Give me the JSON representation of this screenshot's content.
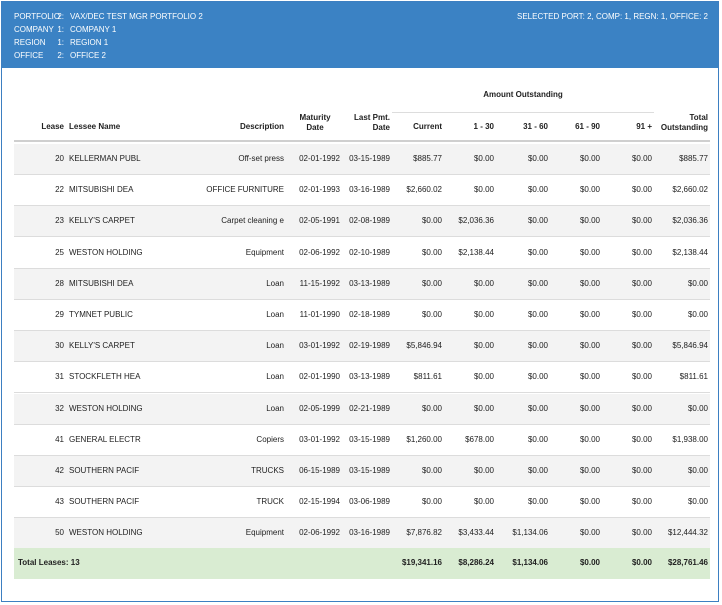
{
  "header": {
    "rows": [
      {
        "key": "PORTFOLIO",
        "num": "2:",
        "val": "VAX/DEC TEST MGR PORTFOLIO 2"
      },
      {
        "key": "COMPANY",
        "num": "1:",
        "val": "COMPANY 1"
      },
      {
        "key": "REGION",
        "num": "1:",
        "val": "REGION 1"
      },
      {
        "key": "OFFICE",
        "num": "2:",
        "val": "OFFICE 2"
      }
    ],
    "selected": "SELECTED PORT: 2, COMP: 1, REGN: 1, OFFICE: 2"
  },
  "table": {
    "group_header": "Amount Outstanding",
    "columns": {
      "lease": "Lease",
      "lessee": "Lessee Name",
      "desc": "Description",
      "maturity_1": "Maturity",
      "maturity_2": "Date",
      "lastpmt_1": "Last Pmt.",
      "lastpmt_2": "Date",
      "current": "Current",
      "b1_30": "1 - 30",
      "b31_60": "31 - 60",
      "b61_90": "61 - 90",
      "b91": "91 +",
      "total_1": "Total",
      "total_2": "Outstanding"
    },
    "rows": [
      {
        "lease": "20",
        "lessee": "KELLERMAN PUBL",
        "desc": "Off-set press",
        "maturity": "02-01-1992",
        "lastpmt": "03-15-1989",
        "current": "$885.77",
        "b1_30": "$0.00",
        "b31_60": "$0.00",
        "b61_90": "$0.00",
        "b91": "$0.00",
        "total": "$885.77"
      },
      {
        "lease": "22",
        "lessee": "MITSUBISHI DEA",
        "desc": "OFFICE FURNITURE",
        "maturity": "02-01-1993",
        "lastpmt": "03-16-1989",
        "current": "$2,660.02",
        "b1_30": "$0.00",
        "b31_60": "$0.00",
        "b61_90": "$0.00",
        "b91": "$0.00",
        "total": "$2,660.02"
      },
      {
        "lease": "23",
        "lessee": "KELLY'S CARPET",
        "desc": "Carpet cleaning e",
        "maturity": "02-05-1991",
        "lastpmt": "02-08-1989",
        "current": "$0.00",
        "b1_30": "$2,036.36",
        "b31_60": "$0.00",
        "b61_90": "$0.00",
        "b91": "$0.00",
        "total": "$2,036.36"
      },
      {
        "lease": "25",
        "lessee": "WESTON HOLDING",
        "desc": "Equipment",
        "maturity": "02-06-1992",
        "lastpmt": "02-10-1989",
        "current": "$0.00",
        "b1_30": "$2,138.44",
        "b31_60": "$0.00",
        "b61_90": "$0.00",
        "b91": "$0.00",
        "total": "$2,138.44"
      },
      {
        "lease": "28",
        "lessee": "MITSUBISHI DEA",
        "desc": "Loan",
        "maturity": "11-15-1992",
        "lastpmt": "03-13-1989",
        "current": "$0.00",
        "b1_30": "$0.00",
        "b31_60": "$0.00",
        "b61_90": "$0.00",
        "b91": "$0.00",
        "total": "$0.00"
      },
      {
        "lease": "29",
        "lessee": "TYMNET PUBLIC",
        "desc": "Loan",
        "maturity": "11-01-1990",
        "lastpmt": "02-18-1989",
        "current": "$0.00",
        "b1_30": "$0.00",
        "b31_60": "$0.00",
        "b61_90": "$0.00",
        "b91": "$0.00",
        "total": "$0.00"
      },
      {
        "lease": "30",
        "lessee": "KELLY'S CARPET",
        "desc": "Loan",
        "maturity": "03-01-1992",
        "lastpmt": "02-19-1989",
        "current": "$5,846.94",
        "b1_30": "$0.00",
        "b31_60": "$0.00",
        "b61_90": "$0.00",
        "b91": "$0.00",
        "total": "$5,846.94"
      },
      {
        "lease": "31",
        "lessee": "STOCKFLETH HEA",
        "desc": "Loan",
        "maturity": "02-01-1990",
        "lastpmt": "03-13-1989",
        "current": "$811.61",
        "b1_30": "$0.00",
        "b31_60": "$0.00",
        "b61_90": "$0.00",
        "b91": "$0.00",
        "total": "$811.61"
      },
      {
        "lease": "32",
        "lessee": "WESTON HOLDING",
        "desc": "Loan",
        "maturity": "02-05-1999",
        "lastpmt": "02-21-1989",
        "current": "$0.00",
        "b1_30": "$0.00",
        "b31_60": "$0.00",
        "b61_90": "$0.00",
        "b91": "$0.00",
        "total": "$0.00"
      },
      {
        "lease": "41",
        "lessee": "GENERAL ELECTR",
        "desc": "Copiers",
        "maturity": "03-01-1992",
        "lastpmt": "03-15-1989",
        "current": "$1,260.00",
        "b1_30": "$678.00",
        "b31_60": "$0.00",
        "b61_90": "$0.00",
        "b91": "$0.00",
        "total": "$1,938.00"
      },
      {
        "lease": "42",
        "lessee": "SOUTHERN PACIF",
        "desc": "TRUCKS",
        "maturity": "06-15-1989",
        "lastpmt": "03-15-1989",
        "current": "$0.00",
        "b1_30": "$0.00",
        "b31_60": "$0.00",
        "b61_90": "$0.00",
        "b91": "$0.00",
        "total": "$0.00"
      },
      {
        "lease": "43",
        "lessee": "SOUTHERN PACIF",
        "desc": "TRUCK",
        "maturity": "02-15-1994",
        "lastpmt": "03-06-1989",
        "current": "$0.00",
        "b1_30": "$0.00",
        "b31_60": "$0.00",
        "b61_90": "$0.00",
        "b91": "$0.00",
        "total": "$0.00"
      },
      {
        "lease": "50",
        "lessee": "WESTON HOLDING",
        "desc": "Equipment",
        "maturity": "02-06-1992",
        "lastpmt": "03-16-1989",
        "current": "$7,876.82",
        "b1_30": "$3,433.44",
        "b31_60": "$1,134.06",
        "b61_90": "$0.00",
        "b91": "$0.00",
        "total": "$12,444.32"
      }
    ],
    "totals": {
      "label": "Total Leases: 13",
      "current": "$19,341.16",
      "b1_30": "$8,286.24",
      "b31_60": "$1,134.06",
      "b61_90": "$0.00",
      "b91": "$0.00",
      "total": "$28,761.46"
    }
  }
}
